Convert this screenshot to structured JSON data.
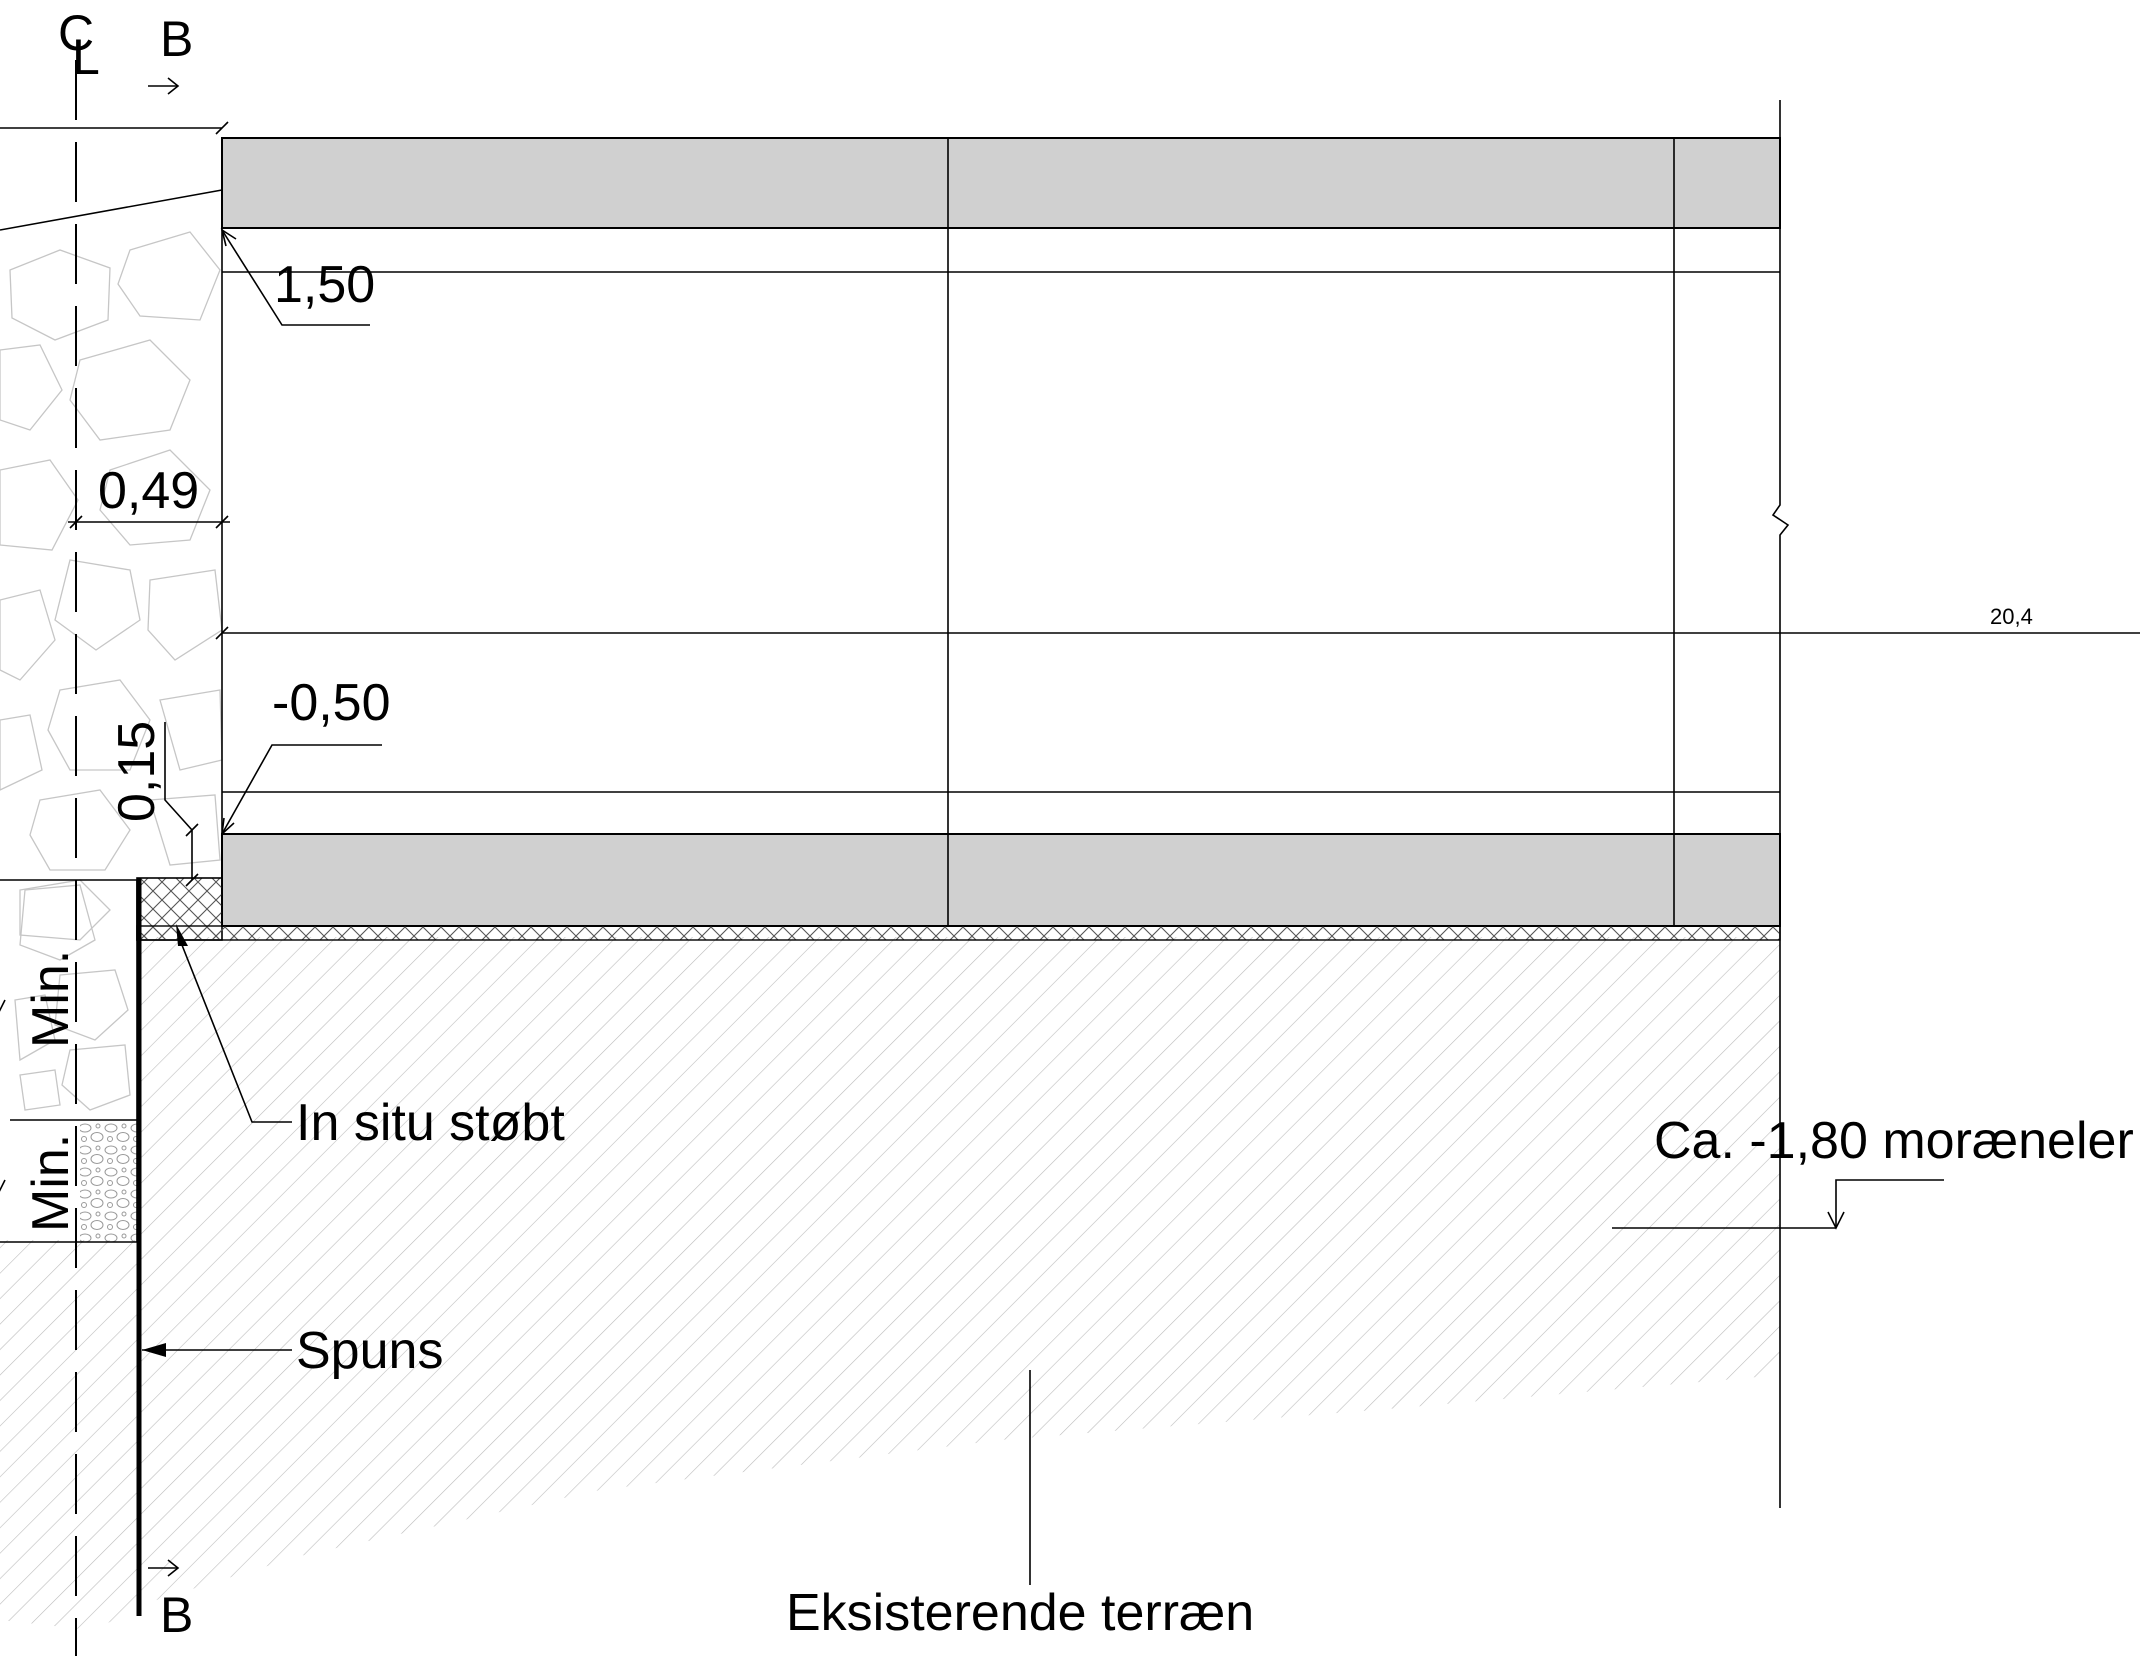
{
  "drawing": {
    "section_mark_top": "B",
    "section_mark_bottom": "B",
    "centerline_c": "C",
    "centerline_l": "L",
    "labels": {
      "level_top": "1,50",
      "width_dim": "0,49",
      "level_bottom": "-0,50",
      "thickness_dim": "0,15",
      "min_upper": "Min.",
      "min_lower": "Min.",
      "cast_in_situ": "In situ støbt",
      "moraine_level": "Ca. -1,80 moræneler",
      "sheet_pile": "Spuns",
      "existing_terrain": "Eksisterende terræn",
      "ext_dim": "20,4"
    }
  }
}
